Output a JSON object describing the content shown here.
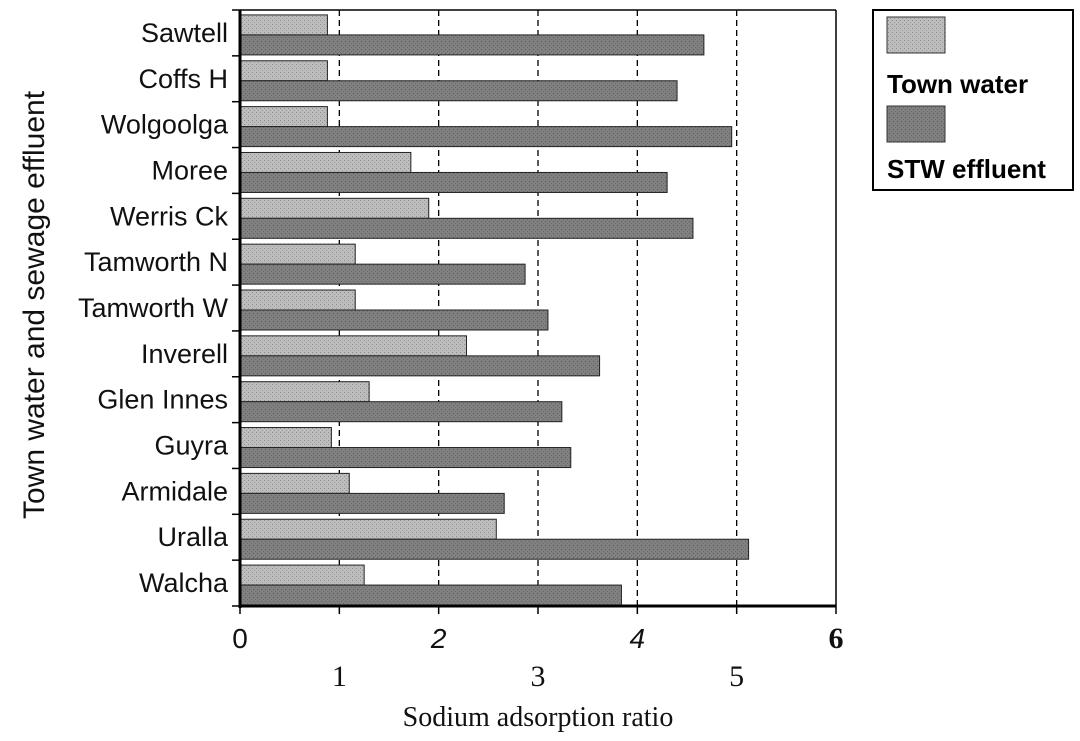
{
  "chart_data": {
    "type": "bar",
    "orientation": "horizontal",
    "ylabel": "Town water and sewage effluent",
    "xlabel": "Sodium adsorption ratio",
    "xlim": [
      0,
      6
    ],
    "x_tick_labels_upper": [
      "0",
      "2",
      "4",
      "6"
    ],
    "x_tick_labels_lower": [
      "1",
      "3",
      "5"
    ],
    "grid": "dashed vertical lines at 1, 2, 3, 4, 5",
    "legend_placement": "outside right, top",
    "legend": [
      "Town water",
      "STW effluent"
    ],
    "categories": [
      "Sawtell",
      "Coffs H",
      "Wolgoolga",
      "Moree",
      "Werris Ck",
      "Tamworth N",
      "Tamworth W",
      "Inverell",
      "Glen Innes",
      "Guyra",
      "Armidale",
      "Uralla",
      "Walcha"
    ],
    "series": [
      {
        "name": "Town water",
        "color": "#b8b8b8",
        "values": [
          0.88,
          0.88,
          0.88,
          1.72,
          1.9,
          1.16,
          1.16,
          2.28,
          1.3,
          0.92,
          1.1,
          2.58,
          1.25
        ]
      },
      {
        "name": "STW effluent",
        "color": "#7e7e7e",
        "values": [
          4.67,
          4.4,
          4.95,
          4.3,
          4.56,
          2.87,
          3.1,
          3.62,
          3.24,
          3.33,
          2.66,
          5.12,
          3.84
        ]
      }
    ]
  }
}
